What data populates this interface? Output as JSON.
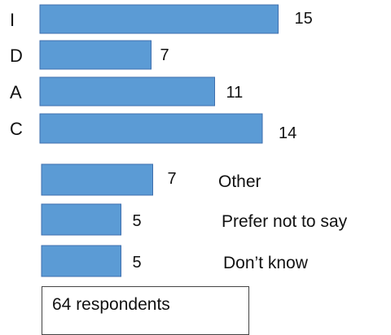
{
  "colors": {
    "bar_fill": "#5b9bd5",
    "bar_stroke": "#3f6fae",
    "text": "#111111"
  },
  "chart_data": {
    "type": "bar",
    "orientation": "horizontal",
    "categories": [
      "I",
      "D",
      "A",
      "C",
      "Other",
      "Prefer not to say",
      "Don’t know"
    ],
    "values": [
      15,
      7,
      11,
      14,
      7,
      5,
      5
    ],
    "title": "",
    "xlabel": "",
    "ylabel": "",
    "xlim": [
      0,
      15
    ],
    "grid": false,
    "legend": "none"
  },
  "footer": {
    "respondents": "64 respondents"
  }
}
